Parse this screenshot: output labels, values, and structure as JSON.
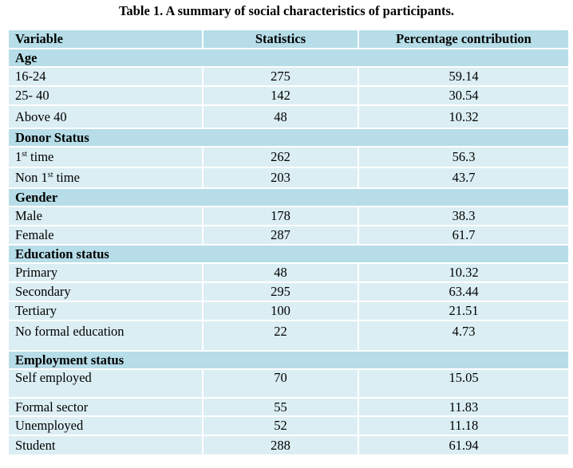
{
  "caption": "Table 1. A summary of social characteristics of participants.",
  "headers": [
    "Variable",
    "Statistics",
    "Percentage contribution"
  ],
  "sections": [
    {
      "name": "Age",
      "rows": [
        {
          "label": "16-24",
          "stat": "275",
          "pct": "59.14"
        },
        {
          "label": "25- 40",
          "stat": "142",
          "pct": "30.54"
        },
        {
          "label": "Above 40",
          "stat": "48",
          "pct": "10.32"
        }
      ]
    },
    {
      "name": "Donor Status",
      "rows": [
        {
          "label_pre": "1",
          "label_sup": "st",
          "label_post": " time",
          "stat": "262",
          "pct": "56.3"
        },
        {
          "label_pre": "Non 1",
          "label_sup": "st",
          "label_post": " time",
          "stat": "203",
          "pct": "43.7"
        }
      ]
    },
    {
      "name": "Gender",
      "rows": [
        {
          "label": "Male",
          "stat": "178",
          "pct": "38.3"
        },
        {
          "label": "Female",
          "stat": "287",
          "pct": "61.7"
        }
      ]
    },
    {
      "name": "Education status",
      "rows": [
        {
          "label": "Primary",
          "stat": "48",
          "pct": "10.32"
        },
        {
          "label": "Secondary",
          "stat": "295",
          "pct": "63.44"
        },
        {
          "label": "Tertiary",
          "stat": "100",
          "pct": "21.51"
        },
        {
          "label": "No formal education",
          "stat": "22",
          "pct": "4.73"
        }
      ]
    },
    {
      "name": "Employment status",
      "rows": [
        {
          "label": "Self employed",
          "stat": "70",
          "pct": "15.05"
        },
        {
          "label": "Formal sector",
          "stat": "55",
          "pct": "11.83"
        },
        {
          "label": "Unemployed",
          "stat": "52",
          "pct": "11.18"
        },
        {
          "label": "Student",
          "stat": "288",
          "pct": "61.94"
        }
      ]
    }
  ]
}
